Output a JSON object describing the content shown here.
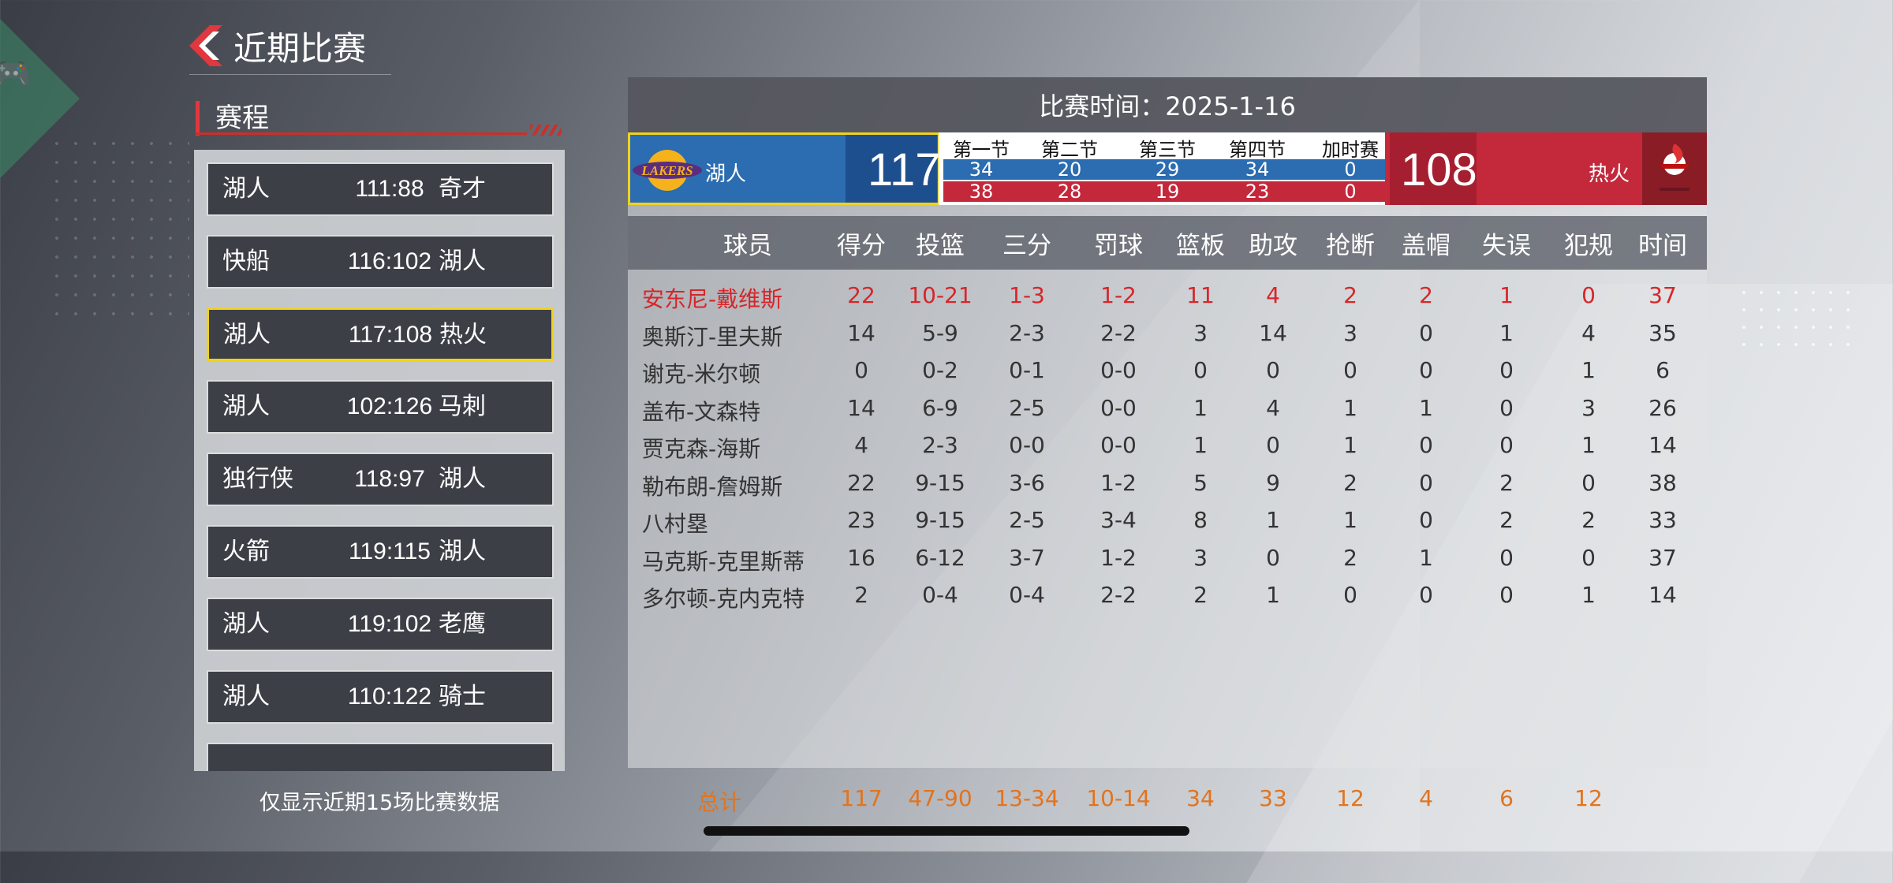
{
  "header": {
    "title": "近期比赛"
  },
  "section": {
    "title": "赛程"
  },
  "schedule": [
    {
      "home": "湖人",
      "score": "111:88",
      "away": "奇才",
      "selected": false
    },
    {
      "home": "快船",
      "score": "116:102",
      "away": "湖人",
      "selected": false
    },
    {
      "home": "湖人",
      "score": "117:108",
      "away": "热火",
      "selected": true
    },
    {
      "home": "湖人",
      "score": "102:126",
      "away": "马刺",
      "selected": false
    },
    {
      "home": "独行侠",
      "score": "118:97",
      "away": "湖人",
      "selected": false
    },
    {
      "home": "火箭",
      "score": "119:115",
      "away": "湖人",
      "selected": false
    },
    {
      "home": "湖人",
      "score": "119:102",
      "away": "老鹰",
      "selected": false
    },
    {
      "home": "湖人",
      "score": "110:122",
      "away": "骑士",
      "selected": false
    }
  ],
  "footnote": "仅显示近期15场比赛数据",
  "game": {
    "time_label": "比赛时间：2025-1-16",
    "home": {
      "name": "湖人",
      "score": "117",
      "color": "#2c6cb0"
    },
    "away": {
      "name": "热火",
      "score": "108",
      "color": "#c4283b"
    },
    "quarters": {
      "labels": [
        "第一节",
        "第二节",
        "第三节",
        "第四节",
        "加时赛"
      ],
      "home": [
        "34",
        "20",
        "29",
        "34",
        "0"
      ],
      "away": [
        "38",
        "28",
        "19",
        "23",
        "0"
      ]
    }
  },
  "stats": {
    "headers": [
      "球员",
      "得分",
      "投篮",
      "三分",
      "罚球",
      "篮板",
      "助攻",
      "抢断",
      "盖帽",
      "失误",
      "犯规",
      "时间"
    ],
    "rows": [
      {
        "name": "安东尼-戴维斯",
        "highlight": true,
        "values": [
          "22",
          "10-21",
          "1-3",
          "1-2",
          "11",
          "4",
          "2",
          "2",
          "1",
          "0",
          "37"
        ]
      },
      {
        "name": "奥斯汀-里夫斯",
        "highlight": false,
        "values": [
          "14",
          "5-9",
          "2-3",
          "2-2",
          "3",
          "14",
          "3",
          "0",
          "1",
          "4",
          "35"
        ]
      },
      {
        "name": "谢克-米尔顿",
        "highlight": false,
        "values": [
          "0",
          "0-2",
          "0-1",
          "0-0",
          "0",
          "0",
          "0",
          "0",
          "0",
          "1",
          "6"
        ]
      },
      {
        "name": "盖布-文森特",
        "highlight": false,
        "values": [
          "14",
          "6-9",
          "2-5",
          "0-0",
          "1",
          "4",
          "1",
          "1",
          "0",
          "3",
          "26"
        ]
      },
      {
        "name": "贾克森-海斯",
        "highlight": false,
        "values": [
          "4",
          "2-3",
          "0-0",
          "0-0",
          "1",
          "0",
          "1",
          "0",
          "0",
          "1",
          "14"
        ]
      },
      {
        "name": "勒布朗-詹姆斯",
        "highlight": false,
        "values": [
          "22",
          "9-15",
          "3-6",
          "1-2",
          "5",
          "9",
          "2",
          "0",
          "2",
          "0",
          "38"
        ]
      },
      {
        "name": "八村塁",
        "highlight": false,
        "values": [
          "23",
          "9-15",
          "2-5",
          "3-4",
          "8",
          "1",
          "1",
          "0",
          "2",
          "2",
          "33"
        ]
      },
      {
        "name": "马克斯-克里斯蒂",
        "highlight": false,
        "values": [
          "16",
          "6-12",
          "3-7",
          "1-2",
          "3",
          "0",
          "2",
          "1",
          "0",
          "0",
          "37"
        ]
      },
      {
        "name": "多尔顿-克内克特",
        "highlight": false,
        "values": [
          "2",
          "0-4",
          "0-4",
          "2-2",
          "2",
          "1",
          "0",
          "0",
          "0",
          "1",
          "14"
        ]
      }
    ],
    "total_label": "总计",
    "totals": [
      "117",
      "47-90",
      "13-34",
      "10-14",
      "34",
      "33",
      "12",
      "4",
      "6",
      "12"
    ]
  },
  "logos": {
    "home_text": "LAKERS"
  },
  "icons": {
    "back": "chevron-left-icon",
    "side": "gamepad-icon"
  },
  "colors": {
    "highlight": "#d6262a",
    "total": "#e07420",
    "selected_border": "#f0d31e"
  }
}
